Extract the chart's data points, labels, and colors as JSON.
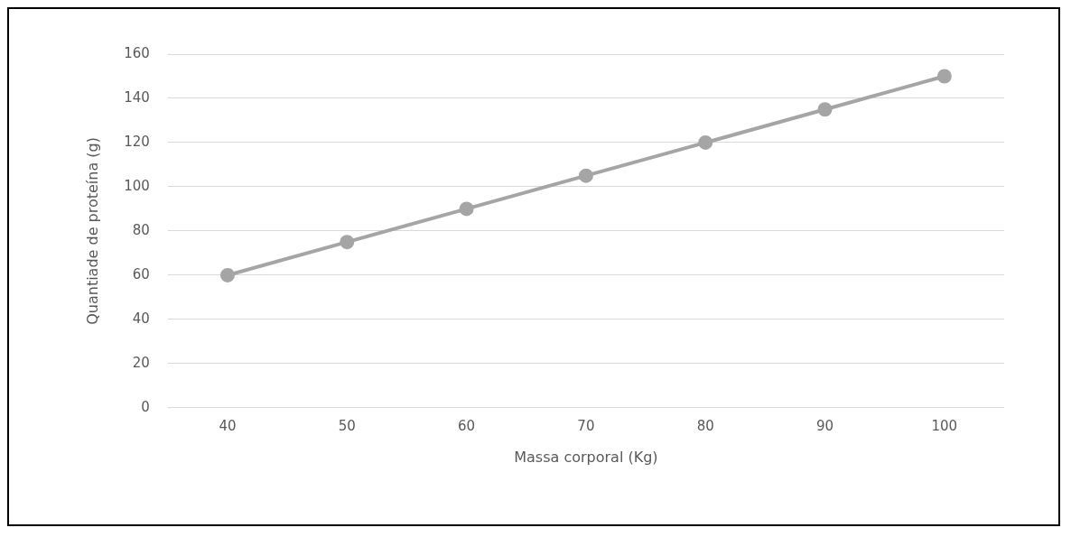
{
  "chart_data": {
    "type": "line",
    "xlabel": "Massa corporal (Kg)",
    "ylabel": "Quantiade de proteína (g)",
    "categories": [
      "40",
      "50",
      "60",
      "70",
      "80",
      "90",
      "100"
    ],
    "series": [
      {
        "color": "#a5a5a5",
        "values": [
          60,
          75,
          90,
          105,
          120,
          135,
          150
        ]
      }
    ],
    "ylim": [
      0,
      160
    ],
    "yticks": [
      0,
      20,
      40,
      60,
      80,
      100,
      120,
      140,
      160
    ],
    "grid": "y",
    "legend": false,
    "marker": "circle",
    "line_style": "solid"
  }
}
